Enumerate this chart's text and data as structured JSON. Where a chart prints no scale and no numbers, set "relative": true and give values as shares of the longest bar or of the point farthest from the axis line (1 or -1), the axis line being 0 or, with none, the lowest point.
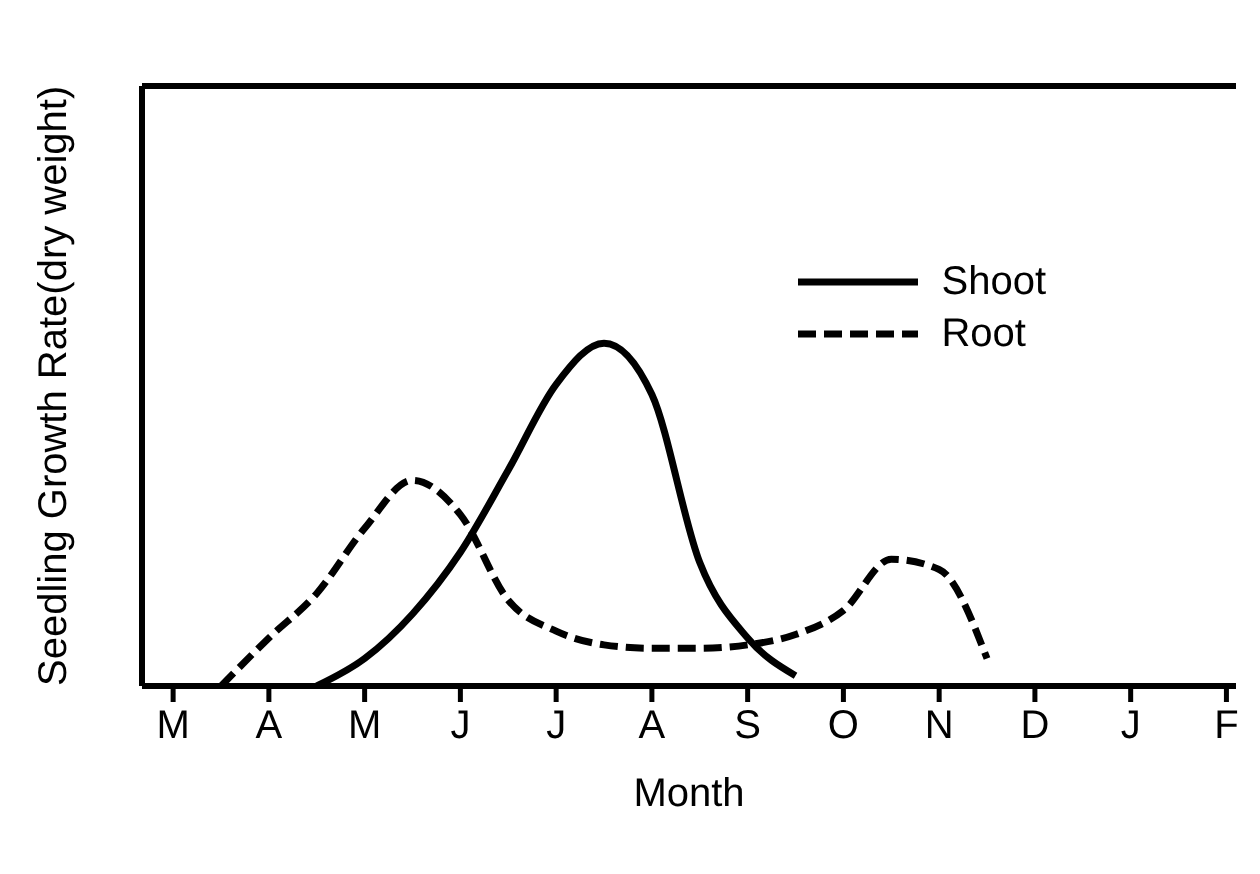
{
  "chart_data": {
    "type": "line",
    "relative": true,
    "xlabel": "Month",
    "ylabel": "Seedling Growth Rate(dry weight)",
    "tick_labels": "x",
    "legend": "top right",
    "grid": false,
    "marker": "none",
    "categories": [
      "M",
      null,
      "A",
      null,
      "M",
      null,
      "J",
      null,
      "J",
      null,
      "A",
      null,
      "S",
      null,
      "O",
      null,
      "N",
      null,
      "D",
      null,
      "J",
      null,
      "F"
    ],
    "series": [
      {
        "name": "Shoot",
        "color": "#000000",
        "line_style": "solid",
        "values": [
          null,
          null,
          null,
          0,
          0.08,
          0.21,
          0.39,
          0.63,
          0.88,
          1,
          0.85,
          0.36,
          0.14,
          0.03,
          null,
          null,
          null,
          null,
          null,
          null,
          null,
          null,
          null
        ]
      },
      {
        "name": "Root",
        "color": "#000000",
        "line_style": "dashed",
        "values": [
          null,
          0,
          0.14,
          0.27,
          0.46,
          0.6,
          0.5,
          0.25,
          0.16,
          0.12,
          0.11,
          0.11,
          0.12,
          0.15,
          0.22,
          0.37,
          0.34,
          0.08,
          null,
          null,
          null,
          null,
          null
        ]
      }
    ]
  }
}
